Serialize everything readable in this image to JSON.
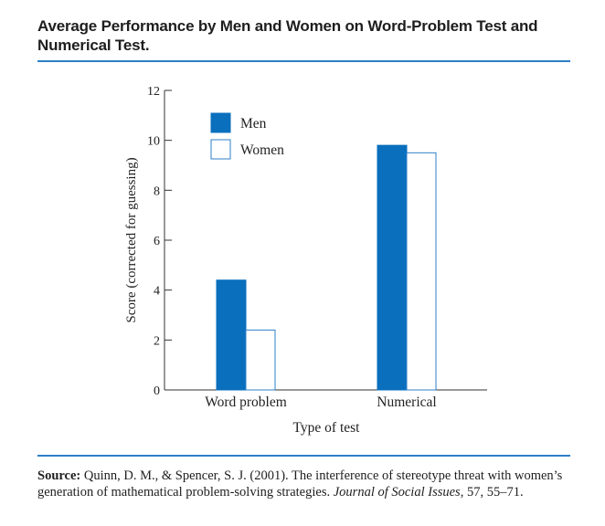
{
  "title": "Average Performance by Men and Women on Word-Problem Test and Numerical Test.",
  "source": {
    "label": "Source:",
    "text_before": " Quinn, D. M., & Spencer, S. J. (2001). The interference of stereotype threat with women’s generation of mathematical problem-solving strategies. ",
    "journal": "Journal of Social Issues",
    "text_after": ", 57, 55–71."
  },
  "colors": {
    "men": "#0a6fbd",
    "women": "#ffffff",
    "outline": "#2e7fc8",
    "rule": "#2e7fc8",
    "axis": "#333333"
  },
  "chart_data": {
    "type": "bar",
    "categories": [
      "Word problem",
      "Numerical"
    ],
    "series": [
      {
        "name": "Men",
        "values": [
          4.4,
          9.8
        ]
      },
      {
        "name": "Women",
        "values": [
          2.4,
          9.5
        ]
      }
    ],
    "xlabel": "Type of test",
    "ylabel": "Score (corrected for guessing)",
    "ylim": [
      0,
      12
    ],
    "yticks": [
      0,
      2,
      4,
      6,
      8,
      10,
      12
    ],
    "grid": false,
    "legend_position": "top-left"
  }
}
